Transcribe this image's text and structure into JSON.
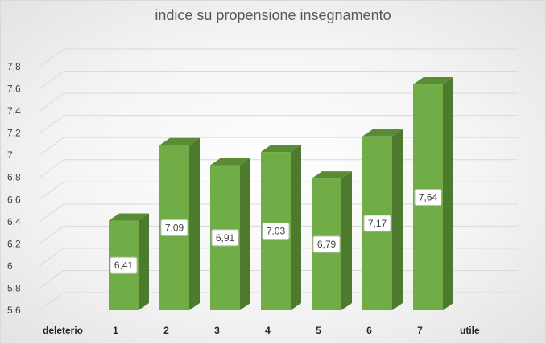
{
  "chart_data": {
    "type": "bar",
    "title": "indice su propensione insegnamento",
    "categories": [
      "1",
      "2",
      "3",
      "4",
      "5",
      "6",
      "7"
    ],
    "values": [
      6.41,
      7.09,
      6.91,
      7.03,
      6.79,
      7.17,
      7.64
    ],
    "data_labels": [
      "6,41",
      "7,09",
      "6,91",
      "7,03",
      "6,79",
      "7,17",
      "7,64"
    ],
    "ylim": [
      5.6,
      7.8
    ],
    "yticks": [
      5.6,
      5.8,
      6.0,
      6.2,
      6.4,
      6.6,
      6.8,
      7.0,
      7.2,
      7.4,
      7.6,
      7.8
    ],
    "ytick_labels": [
      "5,6",
      "5,8",
      "6",
      "6,2",
      "6,4",
      "6,6",
      "6,8",
      "7",
      "7,2",
      "7,4",
      "7,6",
      "7,8"
    ],
    "x_end_labels": {
      "left": "deleterio",
      "right": "utile"
    },
    "grid": true,
    "style": "3d",
    "colors": {
      "bar_front": "#70ad47",
      "bar_side": "#4e7a2e",
      "bar_top": "#5a8c36"
    }
  }
}
